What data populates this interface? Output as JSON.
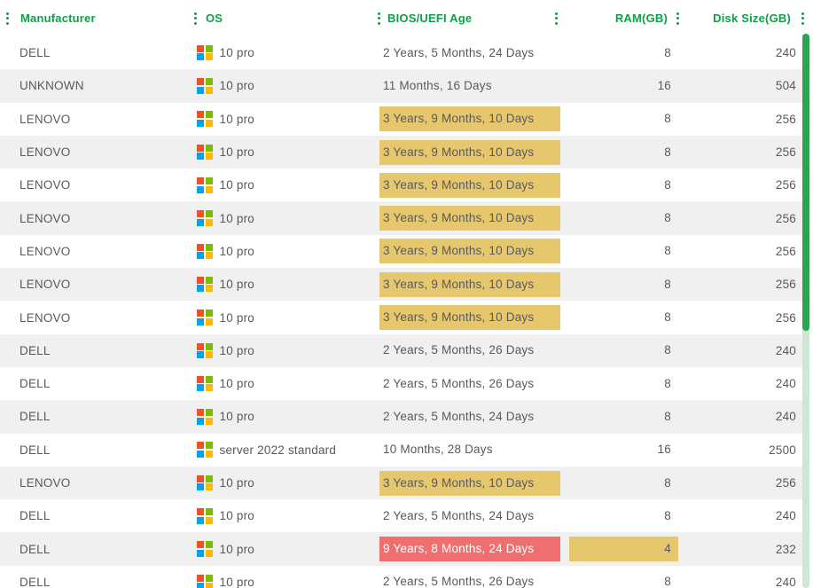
{
  "table": {
    "columns": [
      {
        "label": "Manufacturer",
        "align": "left"
      },
      {
        "label": "OS",
        "align": "left"
      },
      {
        "label": "BIOS/UEFI Age",
        "align": "left"
      },
      {
        "label": "RAM(GB)",
        "align": "right"
      },
      {
        "label": "Disk Size(GB)",
        "align": "right"
      }
    ],
    "rows": [
      {
        "manufacturer": "DELL",
        "os": "10 pro",
        "bios_age": "2 Years, 5 Months, 24 Days",
        "bios_highlight": "none",
        "ram": "8",
        "ram_highlight": "none",
        "disk": "240"
      },
      {
        "manufacturer": "UNKNOWN",
        "os": "10 pro",
        "bios_age": "11 Months, 16 Days",
        "bios_highlight": "none",
        "ram": "16",
        "ram_highlight": "none",
        "disk": "504"
      },
      {
        "manufacturer": "LENOVO",
        "os": "10 pro",
        "bios_age": "3 Years, 9 Months, 10 Days",
        "bios_highlight": "yellow",
        "ram": "8",
        "ram_highlight": "none",
        "disk": "256"
      },
      {
        "manufacturer": "LENOVO",
        "os": "10 pro",
        "bios_age": "3 Years, 9 Months, 10 Days",
        "bios_highlight": "yellow",
        "ram": "8",
        "ram_highlight": "none",
        "disk": "256"
      },
      {
        "manufacturer": "LENOVO",
        "os": "10 pro",
        "bios_age": "3 Years, 9 Months, 10 Days",
        "bios_highlight": "yellow",
        "ram": "8",
        "ram_highlight": "none",
        "disk": "256"
      },
      {
        "manufacturer": "LENOVO",
        "os": "10 pro",
        "bios_age": "3 Years, 9 Months, 10 Days",
        "bios_highlight": "yellow",
        "ram": "8",
        "ram_highlight": "none",
        "disk": "256"
      },
      {
        "manufacturer": "LENOVO",
        "os": "10 pro",
        "bios_age": "3 Years, 9 Months, 10 Days",
        "bios_highlight": "yellow",
        "ram": "8",
        "ram_highlight": "none",
        "disk": "256"
      },
      {
        "manufacturer": "LENOVO",
        "os": "10 pro",
        "bios_age": "3 Years, 9 Months, 10 Days",
        "bios_highlight": "yellow",
        "ram": "8",
        "ram_highlight": "none",
        "disk": "256"
      },
      {
        "manufacturer": "LENOVO",
        "os": "10 pro",
        "bios_age": "3 Years, 9 Months, 10 Days",
        "bios_highlight": "yellow",
        "ram": "8",
        "ram_highlight": "none",
        "disk": "256"
      },
      {
        "manufacturer": "DELL",
        "os": "10 pro",
        "bios_age": "2 Years, 5 Months, 26 Days",
        "bios_highlight": "none",
        "ram": "8",
        "ram_highlight": "none",
        "disk": "240"
      },
      {
        "manufacturer": "DELL",
        "os": "10 pro",
        "bios_age": "2 Years, 5 Months, 26 Days",
        "bios_highlight": "none",
        "ram": "8",
        "ram_highlight": "none",
        "disk": "240"
      },
      {
        "manufacturer": "DELL",
        "os": "10 pro",
        "bios_age": "2 Years, 5 Months, 24 Days",
        "bios_highlight": "none",
        "ram": "8",
        "ram_highlight": "none",
        "disk": "240"
      },
      {
        "manufacturer": "DELL",
        "os": "server 2022 standard",
        "bios_age": "10 Months, 28 Days",
        "bios_highlight": "none",
        "ram": "16",
        "ram_highlight": "none",
        "disk": "2500"
      },
      {
        "manufacturer": "LENOVO",
        "os": "10 pro",
        "bios_age": "3 Years, 9 Months, 10 Days",
        "bios_highlight": "yellow",
        "ram": "8",
        "ram_highlight": "none",
        "disk": "256"
      },
      {
        "manufacturer": "DELL",
        "os": "10 pro",
        "bios_age": "2 Years, 5 Months, 24 Days",
        "bios_highlight": "none",
        "ram": "8",
        "ram_highlight": "none",
        "disk": "240"
      },
      {
        "manufacturer": "DELL",
        "os": "10 pro",
        "bios_age": "9 Years, 8 Months, 24 Days",
        "bios_highlight": "red",
        "ram": "4",
        "ram_highlight": "yellow",
        "disk": "232"
      },
      {
        "manufacturer": "DELL",
        "os": "10 pro",
        "bios_age": "2 Years, 5 Months, 26 Days",
        "bios_highlight": "none",
        "ram": "8",
        "ram_highlight": "none",
        "disk": "240"
      }
    ]
  },
  "icons": {
    "column_menu": "kebab-vertical-dots",
    "os_logo": "windows-logo",
    "windows_logo_colors": [
      "#f25022",
      "#7fba00",
      "#00a4ef",
      "#ffb900"
    ]
  },
  "colors": {
    "accent_green": "#0f9f47",
    "row_stripe": "#f0f0f0",
    "cell_text": "#58595b",
    "highlight_yellow": "#e7c76d",
    "highlight_red": "#ee6f6e",
    "scrollbar_thumb": "#2ea253",
    "scrollbar_track": "#cde7d2"
  }
}
